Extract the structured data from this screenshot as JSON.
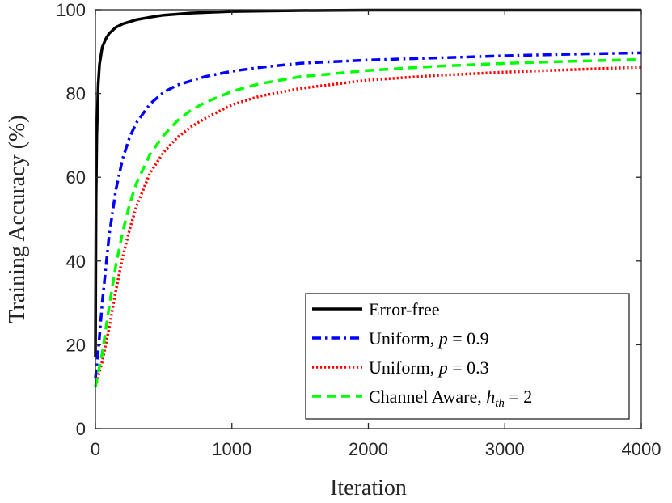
{
  "chart_data": {
    "type": "line",
    "title": "",
    "xlabel": "Iteration",
    "ylabel": "Training Accuracy (%)",
    "xlim": [
      0,
      4000
    ],
    "ylim": [
      0,
      100
    ],
    "xticks": [
      0,
      1000,
      2000,
      3000,
      4000
    ],
    "yticks": [
      0,
      20,
      40,
      60,
      80,
      100
    ],
    "grid": false,
    "legend_position": "bottom-right",
    "series": [
      {
        "name": "Error-free",
        "label_text": "Error-free",
        "color": "#000000",
        "style": "solid",
        "x": [
          0,
          5,
          10,
          20,
          30,
          50,
          75,
          100,
          150,
          200,
          300,
          400,
          500,
          700,
          1000,
          1500,
          2000,
          3000,
          4000
        ],
        "y": [
          17,
          55,
          70,
          82,
          87,
          91,
          93,
          94.3,
          95.8,
          96.6,
          97.6,
          98.2,
          98.7,
          99.2,
          99.6,
          99.8,
          99.9,
          99.9,
          99.9
        ]
      },
      {
        "name": "Uniform, p = 0.9",
        "label_text": "Uniform, ",
        "math_var": "p",
        "math_value": " = 0.9",
        "color": "#0000ff",
        "style": "dashdot",
        "x": [
          0,
          25,
          50,
          100,
          150,
          200,
          250,
          300,
          400,
          500,
          600,
          800,
          1000,
          1200,
          1500,
          2000,
          2500,
          3000,
          3500,
          4000
        ],
        "y": [
          12,
          20,
          30,
          46,
          57,
          64.5,
          69.5,
          73,
          77.5,
          80.3,
          82,
          84,
          85.3,
          86.2,
          87.2,
          88,
          88.5,
          89,
          89.4,
          89.7
        ]
      },
      {
        "name": "Uniform, p = 0.3",
        "label_text": "Uniform, ",
        "math_var": "p",
        "math_value": " = 0.3",
        "color": "#ff0000",
        "style": "dotted",
        "x": [
          0,
          50,
          100,
          150,
          200,
          250,
          300,
          400,
          500,
          600,
          700,
          800,
          1000,
          1200,
          1500,
          2000,
          2500,
          3000,
          3500,
          4000
        ],
        "y": [
          10,
          16,
          24,
          33,
          41,
          47.5,
          53,
          61,
          66,
          69.5,
          72,
          74,
          77.3,
          79.3,
          81.2,
          83.2,
          84.3,
          85.1,
          85.7,
          86.3
        ]
      },
      {
        "name": "Channel Aware, h_th = 2",
        "label_text": "Channel Aware, ",
        "math_var": "h",
        "math_sub": "th",
        "math_value": " = 2",
        "color": "#00ff00",
        "style": "dashed",
        "x": [
          0,
          50,
          100,
          150,
          200,
          250,
          300,
          400,
          500,
          600,
          700,
          800,
          1000,
          1200,
          1500,
          2000,
          2500,
          3000,
          3500,
          4000
        ],
        "y": [
          10,
          18,
          29,
          39,
          47,
          53.5,
          58.5,
          65.5,
          70,
          73.5,
          76,
          77.8,
          80.5,
          82.3,
          84,
          85.5,
          86.5,
          87.2,
          87.7,
          88.1
        ]
      }
    ]
  }
}
